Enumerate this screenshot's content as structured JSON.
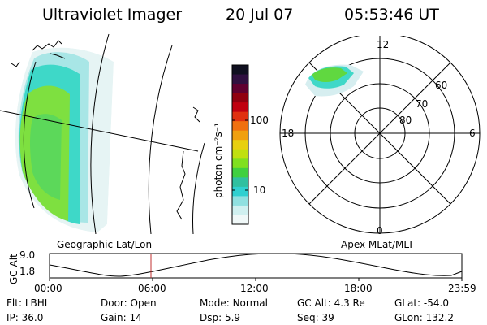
{
  "header": {
    "title": "Ultraviolet Imager",
    "date": "20 Jul 07",
    "time": "05:53:46 UT"
  },
  "colorbar": {
    "label": "photon cm⁻²s⁻¹",
    "ticks": [
      "100",
      "10"
    ],
    "colors": [
      "#101020",
      "#301040",
      "#600030",
      "#900010",
      "#c00010",
      "#e03010",
      "#f07010",
      "#f0a010",
      "#e8d010",
      "#c0e010",
      "#80e020",
      "#40d040",
      "#30c0a0",
      "#30d0d0",
      "#90e0e0",
      "#d0f0f0",
      "#f0f8f8"
    ]
  },
  "polar": {
    "labels": {
      "top": "12",
      "bottom": "0",
      "left": "18",
      "right": "6"
    },
    "rings": [
      "60",
      "70",
      "80"
    ]
  },
  "panel_titles": {
    "geo": "Geographic Lat/Lon",
    "apex": "Apex MLat/MLT"
  },
  "timeline": {
    "ylabel": "GC Alt",
    "yticks": [
      "9.0",
      "1.8"
    ],
    "xticks": [
      "00:00",
      "06:00",
      "12:00",
      "18:00",
      "23:59"
    ]
  },
  "fields": [
    {
      "label": "Flt:",
      "value": "LBHL"
    },
    {
      "label": "Door:",
      "value": "Open"
    },
    {
      "label": "Mode:",
      "value": "Normal"
    },
    {
      "label": "GC Alt:",
      "value": "4.3 Re"
    },
    {
      "label": "GLat:",
      "value": "-54.0"
    },
    {
      "label": "IP:",
      "value": "36.0"
    },
    {
      "label": "Gain:",
      "value": "14"
    },
    {
      "label": "Dsp:",
      "value": "5.9"
    },
    {
      "label": "Seq:",
      "value": "39"
    },
    {
      "label": "GLon:",
      "value": "132.2"
    }
  ]
}
